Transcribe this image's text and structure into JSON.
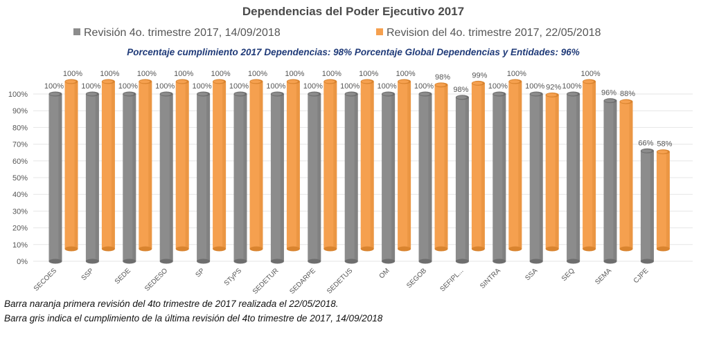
{
  "chart_data": {
    "type": "bar",
    "title": "Dependencias del Poder Ejecutivo 2017",
    "subtitle": "Porcentaje cumplimiento 2017 Dependencias:  98%    Porcentaje Global  Dependencias  y Entidades:  96%",
    "categories": [
      "SECOES",
      "SSP",
      "SEDE",
      "SEDESO",
      "SP",
      "STyPS",
      "SEDETUR",
      "SEDARPE",
      "SEDETUS",
      "OM",
      "SEGOB",
      "SEFIPL...",
      "SINTRA",
      "SSA",
      "SEQ",
      "SEMA",
      "CJPE"
    ],
    "series": [
      {
        "name": "Revisión 4o. trimestre 2017, 14/09/2018",
        "color": "#8c8c8c",
        "values": [
          100,
          100,
          100,
          100,
          100,
          100,
          100,
          100,
          100,
          100,
          100,
          98,
          100,
          100,
          100,
          96,
          66
        ],
        "labels": [
          "100%",
          "100%",
          "100%",
          "100%",
          "100%",
          "100%",
          "100%",
          "100%",
          "100%",
          "100%",
          "100%",
          "98%",
          "100%",
          "100%",
          "100%",
          "96%",
          "66%"
        ]
      },
      {
        "name": "Revision del 4o. trimestre 2017, 22/05/2018",
        "color": "#f5a04f",
        "values": [
          100,
          100,
          100,
          100,
          100,
          100,
          100,
          100,
          100,
          100,
          98,
          99,
          100,
          92,
          100,
          88,
          58
        ],
        "labels": [
          "100%",
          "100%",
          "100%",
          "100%",
          "100%",
          "100%",
          "100%",
          "100%",
          "100%",
          "100%",
          "98%",
          "99%",
          "100%",
          "92%",
          "100%",
          "88%",
          "58%"
        ]
      }
    ],
    "yticks": [
      "0%",
      "10%",
      "20%",
      "30%",
      "40%",
      "50%",
      "60%",
      "70%",
      "80%",
      "90%",
      "100%"
    ],
    "ylim": [
      0,
      100
    ],
    "grid": true,
    "legend": "top"
  },
  "footnotes": {
    "line1": "Barra naranja primera revisión del 4to trimestre de 2017 realizada el 22/05/2018.",
    "line2": "Barra gris indica el cumplimiento de la última revisión del 4to trimestre de 2017,  14/09/2018"
  }
}
